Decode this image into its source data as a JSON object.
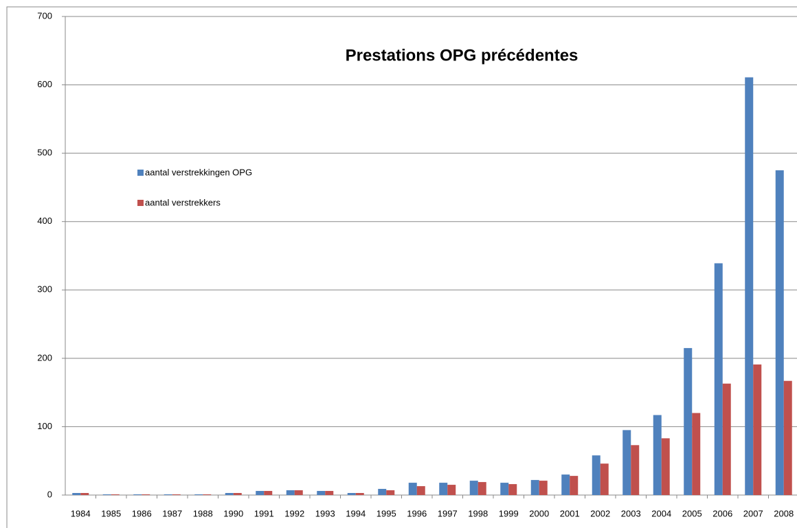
{
  "chart_data": {
    "type": "bar",
    "title": "Prestations OPG précédentes",
    "categories": [
      "1984",
      "1985",
      "1986",
      "1987",
      "1988",
      "1990",
      "1991",
      "1992",
      "1993",
      "1994",
      "1995",
      "1996",
      "1997",
      "1998",
      "1999",
      "2000",
      "2001",
      "2002",
      "2003",
      "2004",
      "2005",
      "2006",
      "2007",
      "2008"
    ],
    "series": [
      {
        "name": "aantal verstrekkingen OPG",
        "color": "#4f81bd",
        "values": [
          3,
          1,
          1,
          1,
          1,
          3,
          6,
          7,
          6,
          3,
          9,
          18,
          18,
          21,
          18,
          22,
          30,
          58,
          95,
          117,
          215,
          339,
          611,
          475
        ]
      },
      {
        "name": "aantal verstrekkers",
        "color": "#c0504d",
        "values": [
          3,
          1,
          1,
          1,
          1,
          3,
          6,
          7,
          6,
          3,
          7,
          13,
          15,
          19,
          16,
          21,
          28,
          46,
          73,
          83,
          120,
          163,
          191,
          167
        ]
      }
    ],
    "ylim": [
      0,
      700
    ],
    "yticks": [
      0,
      100,
      200,
      300,
      400,
      500,
      600,
      700
    ],
    "grid": true
  }
}
